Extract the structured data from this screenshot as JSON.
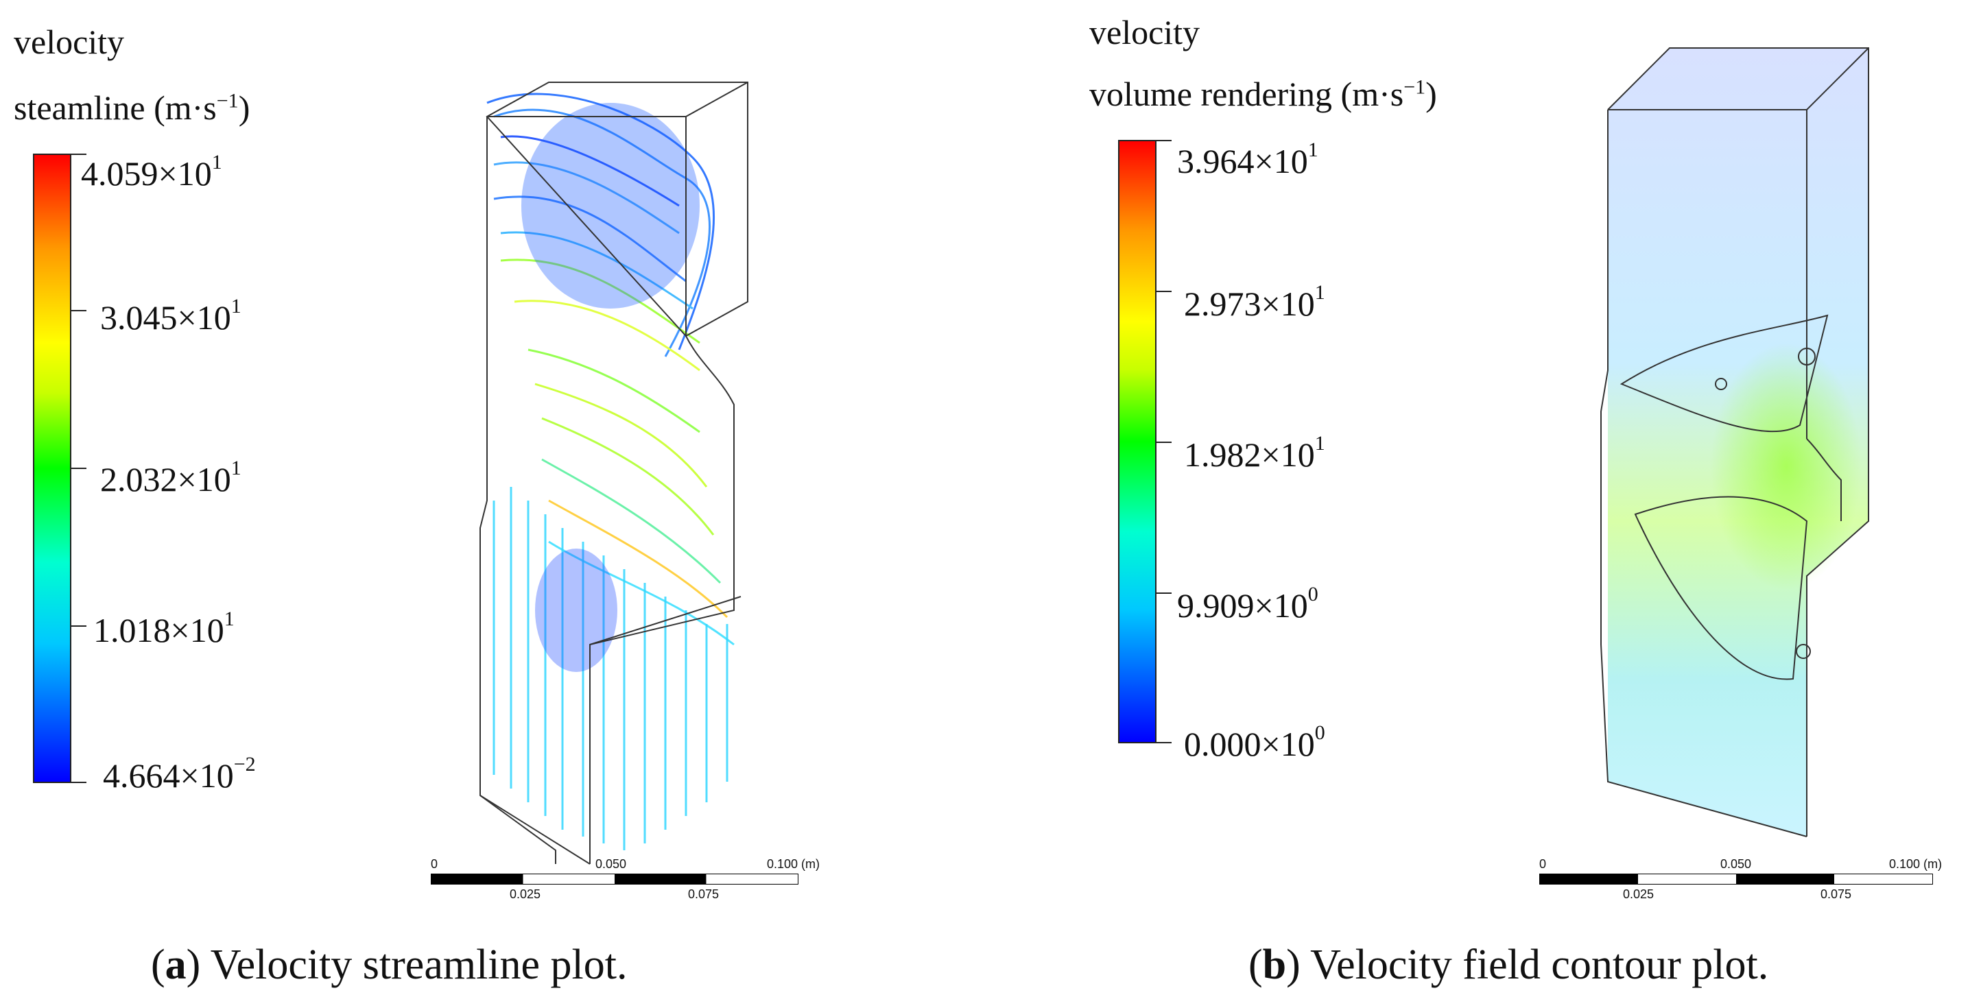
{
  "panels": [
    {
      "id": "a",
      "legend": {
        "title_line1": "velocity",
        "title_line2": "steamline (m·s",
        "unit_exp": "−1",
        "title_close": ")",
        "ticks": [
          {
            "mantissa": "4.059×10",
            "exp": "1"
          },
          {
            "mantissa": "3.045×10",
            "exp": "1"
          },
          {
            "mantissa": "2.032×10",
            "exp": "1"
          },
          {
            "mantissa": "1.018×10",
            "exp": "1"
          },
          {
            "mantissa": "4.664×10",
            "exp": "−2"
          }
        ]
      },
      "scale": {
        "labels_top": [
          "0",
          "0.050",
          "0.100 (m)"
        ],
        "labels_bottom": [
          "0.025",
          "0.075"
        ]
      },
      "caption": {
        "letter": "a",
        "text": " Velocity streamline plot."
      }
    },
    {
      "id": "b",
      "legend": {
        "title_line1": "velocity",
        "title_line2": "volume rendering (m·s",
        "unit_exp": "−1",
        "title_close": ")",
        "ticks": [
          {
            "mantissa": "3.964×10",
            "exp": "1"
          },
          {
            "mantissa": "2.973×10",
            "exp": "1"
          },
          {
            "mantissa": "1.982×10",
            "exp": "1"
          },
          {
            "mantissa": "9.909×10",
            "exp": "0"
          },
          {
            "mantissa": "0.000×10",
            "exp": "0"
          }
        ]
      },
      "scale": {
        "labels_top": [
          "0",
          "0.050",
          "0.100 (m)"
        ],
        "labels_bottom": [
          "0.025",
          "0.075"
        ]
      },
      "caption": {
        "letter": "b",
        "text": " Velocity field contour plot."
      }
    }
  ],
  "colors": {
    "min": "#0000ff",
    "mid": "#00ff00",
    "max": "#ff0000"
  }
}
